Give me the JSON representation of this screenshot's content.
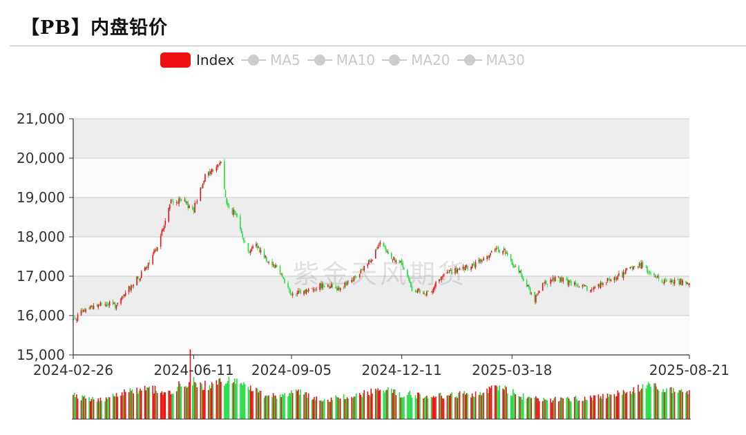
{
  "title": "【PB】内盘铅价",
  "legend": {
    "items": [
      {
        "label": "Index",
        "color": "#ee1111",
        "active": true
      },
      {
        "label": "MA5",
        "color": "#cccccc",
        "active": false
      },
      {
        "label": "MA10",
        "color": "#cccccc",
        "active": false
      },
      {
        "label": "MA20",
        "color": "#cccccc",
        "active": false
      },
      {
        "label": "MA30",
        "color": "#cccccc",
        "active": false
      }
    ]
  },
  "watermark": "紫金天风期货",
  "chart_data": {
    "type": "candlestick",
    "x_start": "2024-02-26",
    "x_end": "2025-08-21",
    "x_ticks": [
      "2024-02-26",
      "2024-06-11",
      "2024-09-05",
      "2024-12-11",
      "2025-03-18",
      "2025-08-21"
    ],
    "y_ticks": [
      "15,000",
      "16,000",
      "17,000",
      "18,000",
      "19,000",
      "20,000",
      "21,000"
    ],
    "ylim": [
      15000,
      21000
    ],
    "colors": {
      "up": "#ee1111",
      "down": "#22dd44"
    },
    "close_path": [
      [
        "2024-02-26",
        15900
      ],
      [
        "2024-03-10",
        16200
      ],
      [
        "2024-03-25",
        16300
      ],
      [
        "2024-04-05",
        16250
      ],
      [
        "2024-04-15",
        16700
      ],
      [
        "2024-04-25",
        17000
      ],
      [
        "2024-05-05",
        17400
      ],
      [
        "2024-05-15",
        18200
      ],
      [
        "2024-05-22",
        18900
      ],
      [
        "2024-06-01",
        18900
      ],
      [
        "2024-06-11",
        18700
      ],
      [
        "2024-06-20",
        19500
      ],
      [
        "2024-06-28",
        19700
      ],
      [
        "2024-07-05",
        19900
      ],
      [
        "2024-07-10",
        18800
      ],
      [
        "2024-07-20",
        18500
      ],
      [
        "2024-07-28",
        17600
      ],
      [
        "2024-08-05",
        17800
      ],
      [
        "2024-08-15",
        17400
      ],
      [
        "2024-08-25",
        17200
      ],
      [
        "2024-09-05",
        16500
      ],
      [
        "2024-09-15",
        16600
      ],
      [
        "2024-09-25",
        16700
      ],
      [
        "2024-10-05",
        16800
      ],
      [
        "2024-10-15",
        16700
      ],
      [
        "2024-10-25",
        16800
      ],
      [
        "2024-11-05",
        17100
      ],
      [
        "2024-11-15",
        17500
      ],
      [
        "2024-11-22",
        17800
      ],
      [
        "2024-12-01",
        17500
      ],
      [
        "2024-12-11",
        17300
      ],
      [
        "2024-12-20",
        16700
      ],
      [
        "2025-01-01",
        16500
      ],
      [
        "2025-01-10",
        16800
      ],
      [
        "2025-01-20",
        17100
      ],
      [
        "2025-02-01",
        17150
      ],
      [
        "2025-02-15",
        17300
      ],
      [
        "2025-02-28",
        17600
      ],
      [
        "2025-03-10",
        17700
      ],
      [
        "2025-03-18",
        17300
      ],
      [
        "2025-03-25",
        17100
      ],
      [
        "2025-04-07",
        16400
      ],
      [
        "2025-04-15",
        16800
      ],
      [
        "2025-04-25",
        16950
      ],
      [
        "2025-05-10",
        16800
      ],
      [
        "2025-05-25",
        16650
      ],
      [
        "2025-06-05",
        16800
      ],
      [
        "2025-06-20",
        17000
      ],
      [
        "2025-07-01",
        17200
      ],
      [
        "2025-07-10",
        17300
      ],
      [
        "2025-07-20",
        17000
      ],
      [
        "2025-08-01",
        16850
      ],
      [
        "2025-08-10",
        16900
      ],
      [
        "2025-08-21",
        16750
      ]
    ],
    "volume_level": [
      [
        "2024-02-26",
        0.55
      ],
      [
        "2024-03-20",
        0.45
      ],
      [
        "2024-04-10",
        0.65
      ],
      [
        "2024-05-01",
        0.75
      ],
      [
        "2024-05-20",
        0.6
      ],
      [
        "2024-06-01",
        0.85
      ],
      [
        "2024-06-11",
        0.9
      ],
      [
        "2024-06-25",
        0.75
      ],
      [
        "2024-07-10",
        0.95
      ],
      [
        "2024-07-25",
        0.85
      ],
      [
        "2024-08-10",
        0.6
      ],
      [
        "2024-08-25",
        0.55
      ],
      [
        "2024-09-10",
        0.65
      ],
      [
        "2024-10-01",
        0.45
      ],
      [
        "2024-11-01",
        0.55
      ],
      [
        "2024-11-20",
        0.7
      ],
      [
        "2024-12-11",
        0.6
      ],
      [
        "2025-01-10",
        0.55
      ],
      [
        "2025-02-10",
        0.6
      ],
      [
        "2025-03-10",
        0.75
      ],
      [
        "2025-03-25",
        0.55
      ],
      [
        "2025-04-15",
        0.45
      ],
      [
        "2025-05-15",
        0.5
      ],
      [
        "2025-06-10",
        0.55
      ],
      [
        "2025-07-01",
        0.7
      ],
      [
        "2025-07-20",
        0.8
      ],
      [
        "2025-08-10",
        0.65
      ],
      [
        "2025-08-21",
        0.6
      ]
    ]
  }
}
